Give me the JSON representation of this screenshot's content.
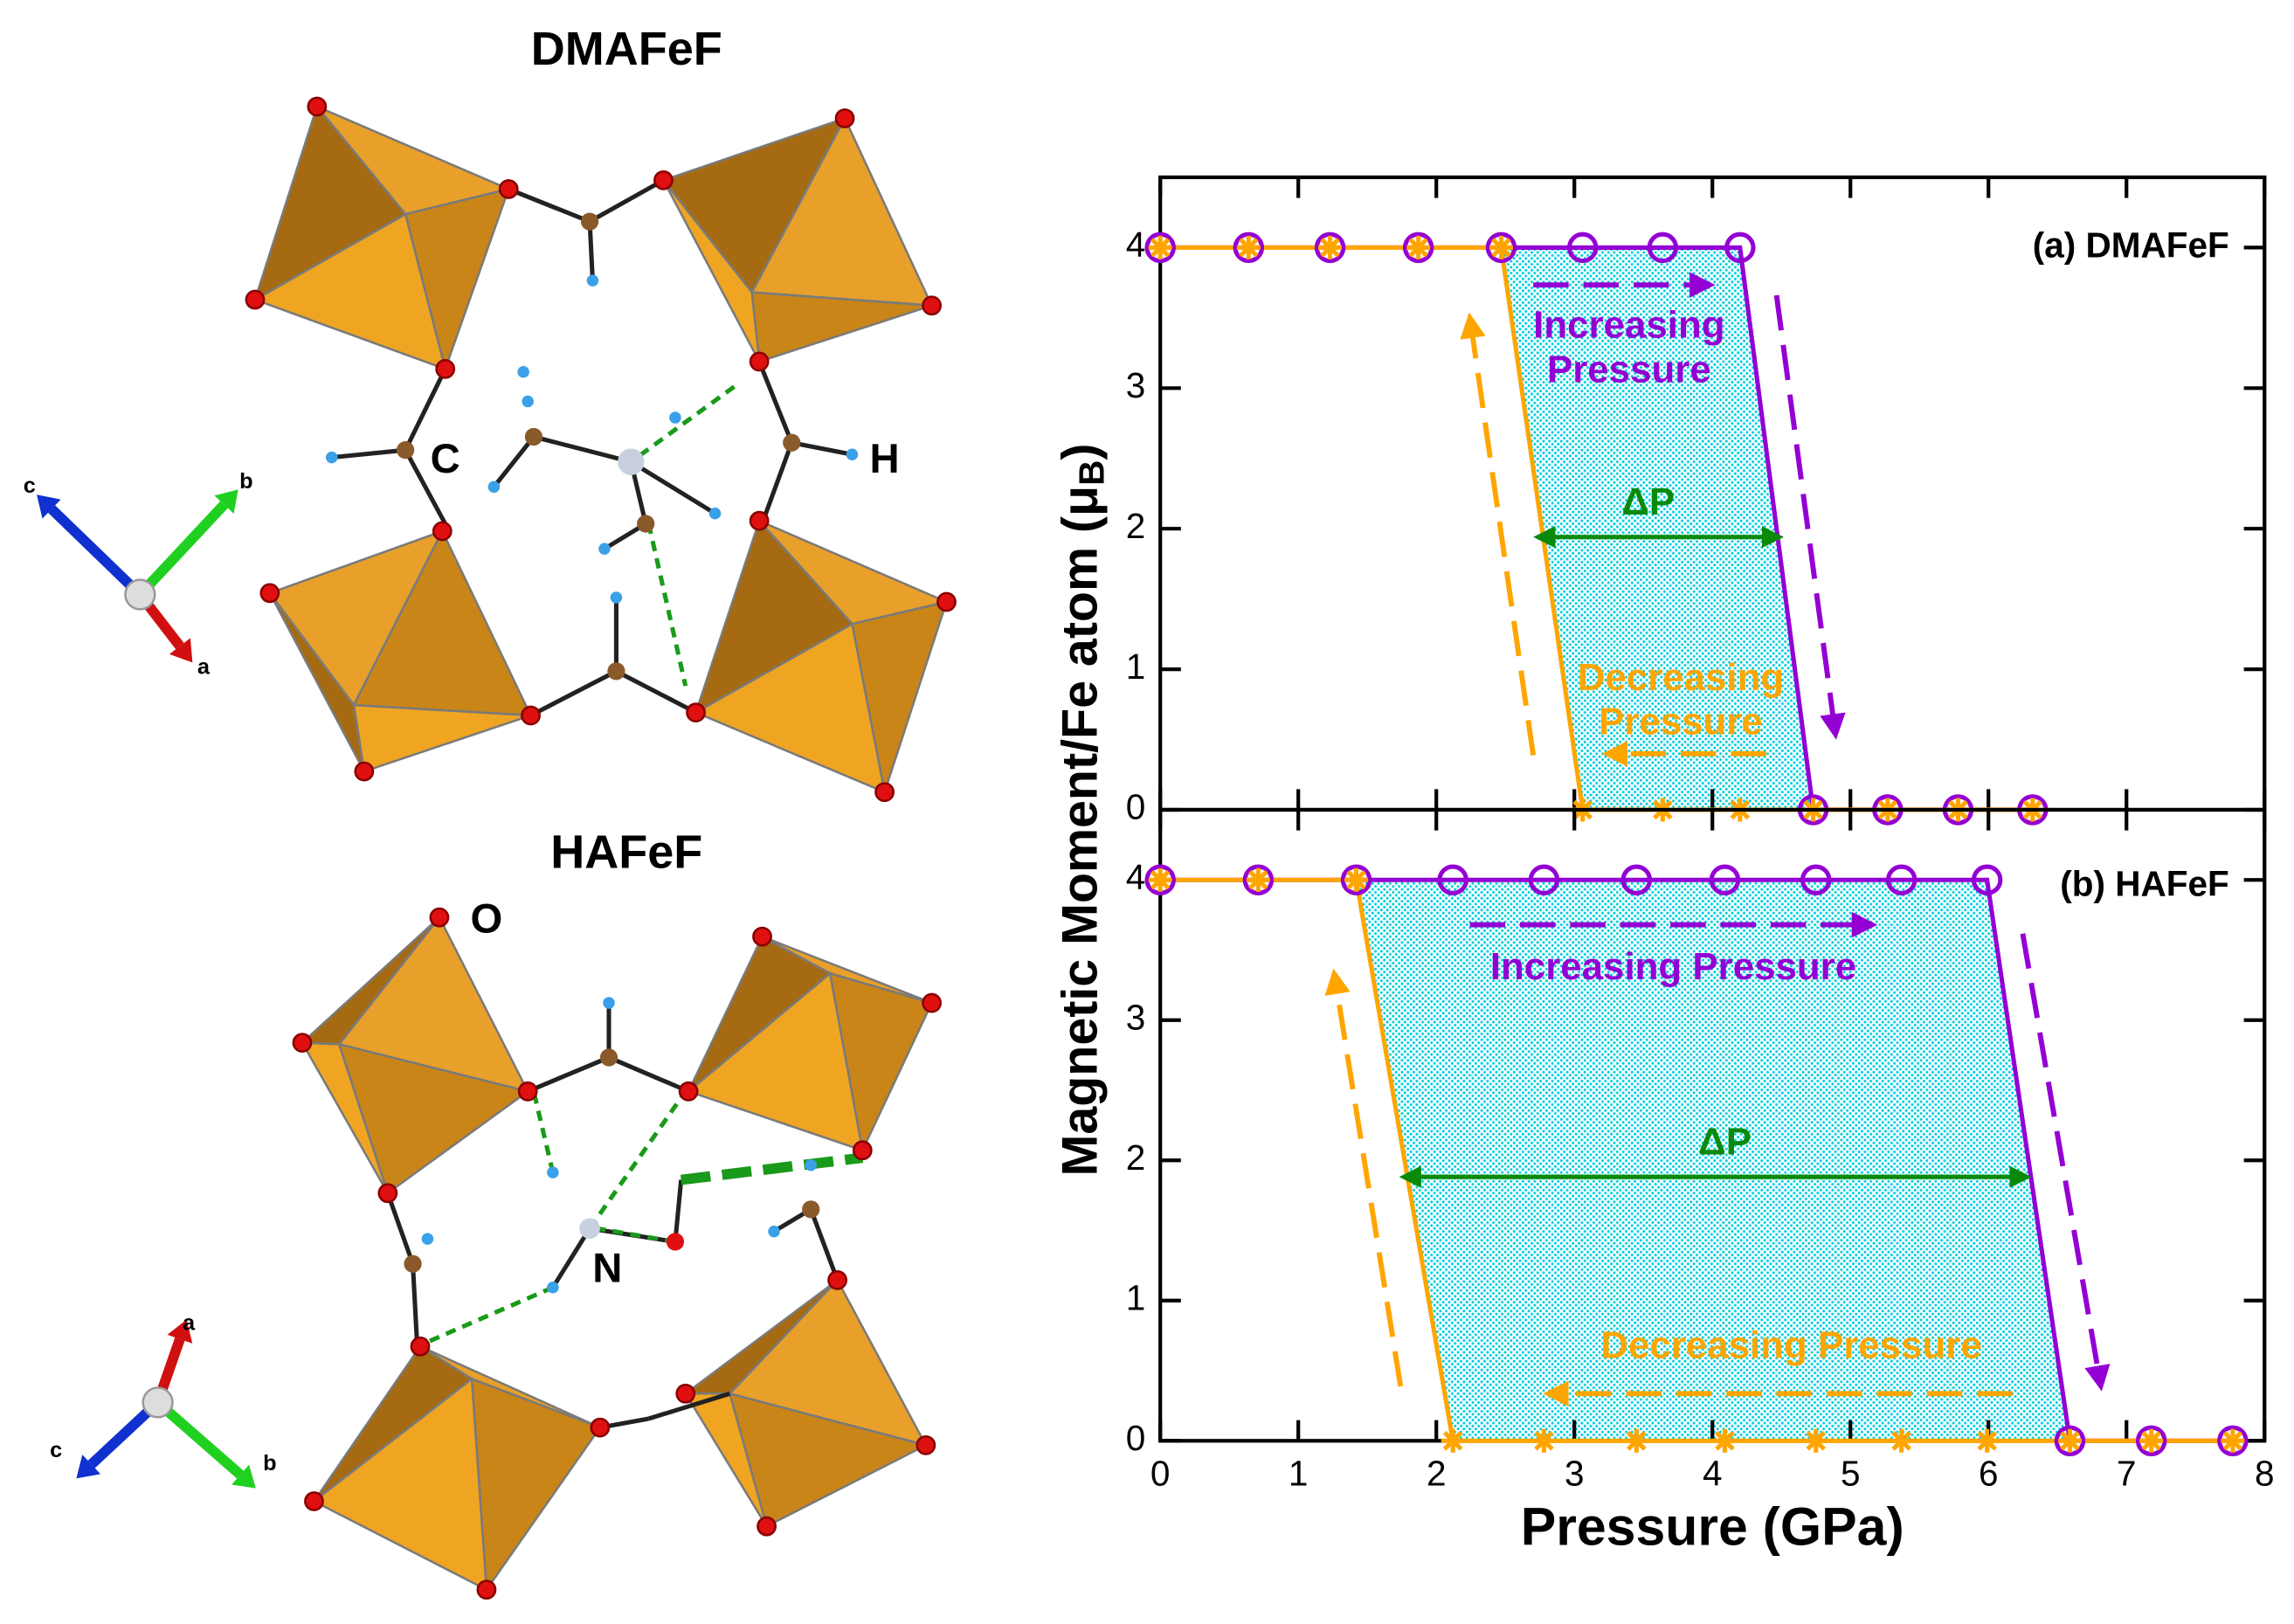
{
  "structures": [
    {
      "title": "DMAFeF",
      "atom_labels": [
        "C",
        "H"
      ]
    },
    {
      "title": "HAFeF",
      "atom_labels": [
        "O",
        "N"
      ]
    }
  ],
  "axes_triads": [
    [
      "c",
      "b",
      "a"
    ],
    [
      "a",
      "c",
      "b"
    ]
  ],
  "chart_data": [
    {
      "type": "line",
      "panel_label": "(a) DMAFeF",
      "ylabel": [
        "Magnetic Moment/Fe atom (μ",
        "B",
        ")"
      ],
      "x": [
        0,
        0.64,
        1.23,
        1.87,
        2.47,
        3.06,
        3.64,
        4.2,
        4.73,
        5.27,
        5.78,
        6.32
      ],
      "series": [
        {
          "color": "#9400d3",
          "marker": "circle",
          "values": [
            4,
            4,
            4,
            4,
            4,
            4,
            4,
            4,
            0,
            0,
            0,
            0
          ]
        },
        {
          "color": "#ffa500",
          "marker": "asterisk",
          "values": [
            4,
            4,
            4,
            4,
            4,
            0,
            0,
            0,
            0,
            0,
            0,
            0
          ]
        }
      ],
      "xlim": [
        0,
        8
      ],
      "ylim": [
        0,
        4.5
      ],
      "yticks": [
        0,
        1,
        2,
        3,
        4
      ],
      "increasing_label": [
        "Increasing",
        "Pressure"
      ],
      "decreasing_label": [
        "Decreasing",
        "Pressure"
      ],
      "delta_label": "ΔP",
      "fill": "#00e5ee"
    },
    {
      "type": "line",
      "panel_label": "(b) HAFeF",
      "xlabel": "Pressure (GPa)",
      "x": [
        0,
        0.71,
        1.42,
        2.12,
        2.78,
        3.45,
        4.09,
        4.75,
        5.37,
        5.99,
        6.59,
        7.18,
        7.77
      ],
      "series": [
        {
          "color": "#9400d3",
          "marker": "circle",
          "values": [
            4,
            4,
            4,
            4,
            4,
            4,
            4,
            4,
            4,
            4,
            0,
            0,
            0
          ]
        },
        {
          "color": "#ffa500",
          "marker": "asterisk",
          "values": [
            4,
            4,
            4,
            0,
            0,
            0,
            0,
            0,
            0,
            0,
            0,
            0,
            0
          ]
        }
      ],
      "xlim": [
        0,
        8
      ],
      "ylim": [
        0,
        4.5
      ],
      "yticks": [
        0,
        1,
        2,
        3,
        4
      ],
      "xticks": [
        0,
        1,
        2,
        3,
        4,
        5,
        6,
        7,
        8
      ],
      "increasing_label": [
        "Increasing Pressure"
      ],
      "decreasing_label": [
        "Decreasing Pressure"
      ],
      "delta_label": "ΔP",
      "fill": "#00e5ee"
    }
  ]
}
